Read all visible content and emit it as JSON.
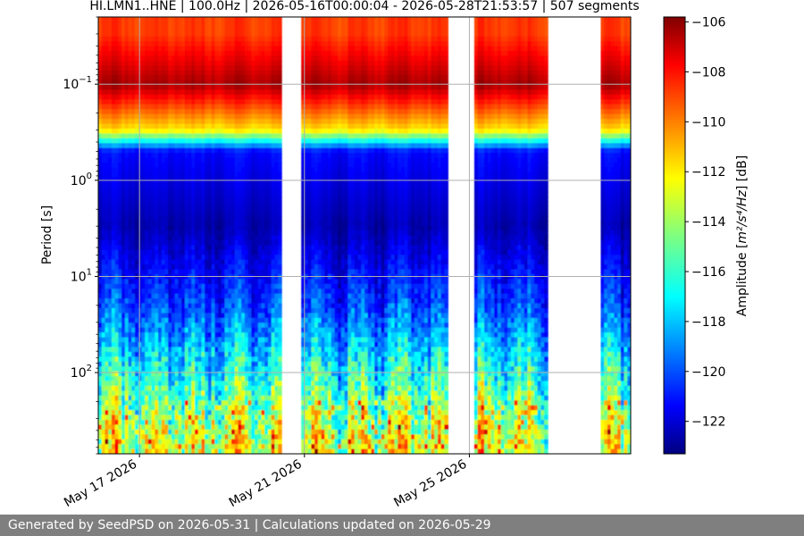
{
  "chart_data": {
    "type": "heatmap",
    "title": "HI.LMN1..HNE | 100.0Hz | 2026-05-16T00:00:04 - 2026-05-28T21:53:57 | 507 segments",
    "ylabel": "Period [s]",
    "y_scale": "log",
    "y_inverted": true,
    "ylim": [
      0.02,
      700
    ],
    "y_ticks": [
      {
        "value": 0.1,
        "base": "10",
        "exp": "−1"
      },
      {
        "value": 1,
        "base": "10",
        "exp": "0"
      },
      {
        "value": 10,
        "base": "10",
        "exp": "1"
      },
      {
        "value": 100,
        "base": "10",
        "exp": "2"
      }
    ],
    "xlim": [
      "2026-05-16T00:00:04",
      "2026-05-28T21:53:57"
    ],
    "x_ticks": [
      {
        "value": "2026-05-17",
        "label": "May 17 2026"
      },
      {
        "value": "2026-05-21",
        "label": "May 21 2026"
      },
      {
        "value": "2026-05-25",
        "label": "May 25 2026"
      }
    ],
    "grid": true,
    "colormap": "jet",
    "colorbar": {
      "label_prefix": "Amplitude [",
      "label_unit": "m²/s⁴/Hz",
      "label_suffix": "] [dB]",
      "range": [
        -123.3,
        -105.8
      ],
      "ticks": [
        -106,
        -108,
        -110,
        -112,
        -114,
        -116,
        -118,
        -120,
        -122
      ]
    },
    "data_gaps_days": [
      [
        4.4,
        4.9
      ],
      [
        8.5,
        9.1
      ],
      [
        10.9,
        12.2
      ]
    ],
    "typical_levels_db": [
      {
        "period_s": 0.03,
        "amplitude_db": -109
      },
      {
        "period_s": 0.1,
        "amplitude_db": -106.5
      },
      {
        "period_s": 0.3,
        "amplitude_db": -112
      },
      {
        "period_s": 0.5,
        "amplitude_db": -121
      },
      {
        "period_s": 3,
        "amplitude_db": -122.5
      },
      {
        "period_s": 20,
        "amplitude_db": -120
      },
      {
        "period_s": 100,
        "amplitude_db": -116.5
      },
      {
        "period_s": 500,
        "amplitude_db": -113
      }
    ]
  },
  "footer": {
    "text": "Generated by SeedPSD on 2026-05-31 | Calculations updated on 2026-05-29"
  }
}
